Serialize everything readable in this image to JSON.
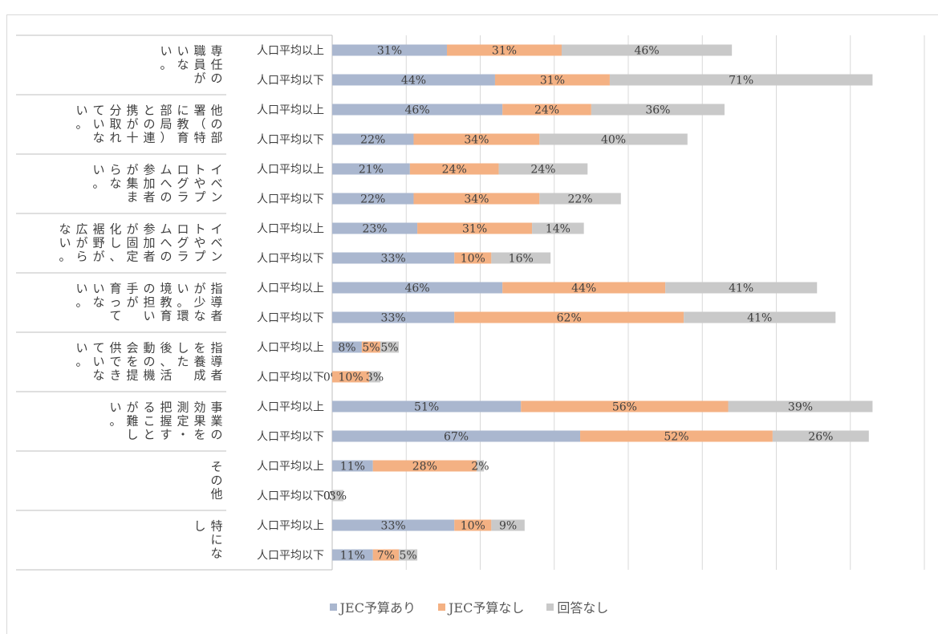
{
  "chart_data": {
    "type": "bar",
    "orientation": "horizontal",
    "stacked": true,
    "grid": true,
    "legend_position": "bottom",
    "series": [
      {
        "name": "JEC予算あり",
        "color": "#aab7cf"
      },
      {
        "name": "JEC予算なし",
        "color": "#f4b183"
      },
      {
        "name": "回答なし",
        "color": "#c9c9c9"
      }
    ],
    "groups": [
      {
        "label": "専任の\n職員が\nいな\nい。",
        "rows": [
          {
            "label": "人口平均以上",
            "values": [
              31,
              31,
              46
            ],
            "labels": [
              "31%",
              "31%",
              "46%"
            ]
          },
          {
            "label": "人口平均以下",
            "values": [
              44,
              31,
              71
            ],
            "labels": [
              "44%",
              "31%",
              "71%"
            ]
          }
        ]
      },
      {
        "label": "他の部\n署（特\nに教育\n部局）\nとの連\n携が十\n分取れ\nていな\nい。",
        "rows": [
          {
            "label": "人口平均以上",
            "values": [
              46,
              24,
              36
            ],
            "labels": [
              "46%",
              "24%",
              "36%"
            ]
          },
          {
            "label": "人口平均以下",
            "values": [
              22,
              34,
              40
            ],
            "labels": [
              "22%",
              "34%",
              "40%"
            ]
          }
        ]
      },
      {
        "label": "イベン\nトやプ\nログラ\nムへの\n参加者\nが集ま\nらな\nい。",
        "rows": [
          {
            "label": "人口平均以上",
            "values": [
              21,
              24,
              24
            ],
            "labels": [
              "21%",
              "24%",
              "24%"
            ]
          },
          {
            "label": "人口平均以下",
            "values": [
              22,
              34,
              22
            ],
            "labels": [
              "22%",
              "34%",
              "22%"
            ]
          }
        ]
      },
      {
        "label": "イベン\nトやプ\nログラ\nムへの\n参加者\nが固定\n化し、\n裾野が\n広がら\nない。",
        "rows": [
          {
            "label": "人口平均以上",
            "values": [
              23,
              31,
              14
            ],
            "labels": [
              "23%",
              "31%",
              "14%"
            ]
          },
          {
            "label": "人口平均以下",
            "values": [
              33,
              10,
              16
            ],
            "labels": [
              "33%",
              "10%",
              "16%"
            ]
          }
        ]
      },
      {
        "label": "指導者\nが少な\nい。環\n境教育\nの担い\n手が\n育って\nいな\nい。",
        "rows": [
          {
            "label": "人口平均以上",
            "values": [
              46,
              44,
              41
            ],
            "labels": [
              "46%",
              "44%",
              "41%"
            ]
          },
          {
            "label": "人口平均以下",
            "values": [
              33,
              62,
              41
            ],
            "labels": [
              "33%",
              "62%",
              "41%"
            ]
          }
        ]
      },
      {
        "label": "指導者\nを養成\nした\n後、活\n動の機\n会を提\n供でき\nていな\nい。",
        "rows": [
          {
            "label": "人口平均以上",
            "values": [
              8,
              5,
              5
            ],
            "labels": [
              "8%",
              "5%",
              "5%"
            ]
          },
          {
            "label": "人口平均以下",
            "values": [
              0,
              10,
              3
            ],
            "labels": [
              "0%",
              "10%",
              "3%"
            ]
          }
        ]
      },
      {
        "label": "事業の\n効果を\n測定・\n把握す\nること\nが難し\nい。",
        "rows": [
          {
            "label": "人口平均以上",
            "values": [
              51,
              56,
              39
            ],
            "labels": [
              "51%",
              "56%",
              "39%"
            ]
          },
          {
            "label": "人口平均以下",
            "values": [
              67,
              52,
              26
            ],
            "labels": [
              "67%",
              "52%",
              "26%"
            ]
          }
        ]
      },
      {
        "label": "その他",
        "rows": [
          {
            "label": "人口平均以上",
            "values": [
              11,
              28,
              2
            ],
            "labels": [
              "11%",
              "28%",
              "2%"
            ]
          },
          {
            "label": "人口平均以下",
            "values": [
              0,
              0,
              3
            ],
            "labels": [
              "0%",
              "0%",
              "3%"
            ]
          }
        ]
      },
      {
        "label": "特にな\nし",
        "rows": [
          {
            "label": "人口平均以上",
            "values": [
              33,
              10,
              9
            ],
            "labels": [
              "33%",
              "10%",
              "9%"
            ]
          },
          {
            "label": "人口平均以下",
            "values": [
              11,
              7,
              5
            ],
            "labels": [
              "11%",
              "7%",
              "5%"
            ]
          }
        ]
      }
    ],
    "xlim": [
      0,
      160
    ],
    "x_gridlines": [
      0,
      20,
      40,
      60,
      80,
      100,
      120,
      140,
      160
    ]
  }
}
